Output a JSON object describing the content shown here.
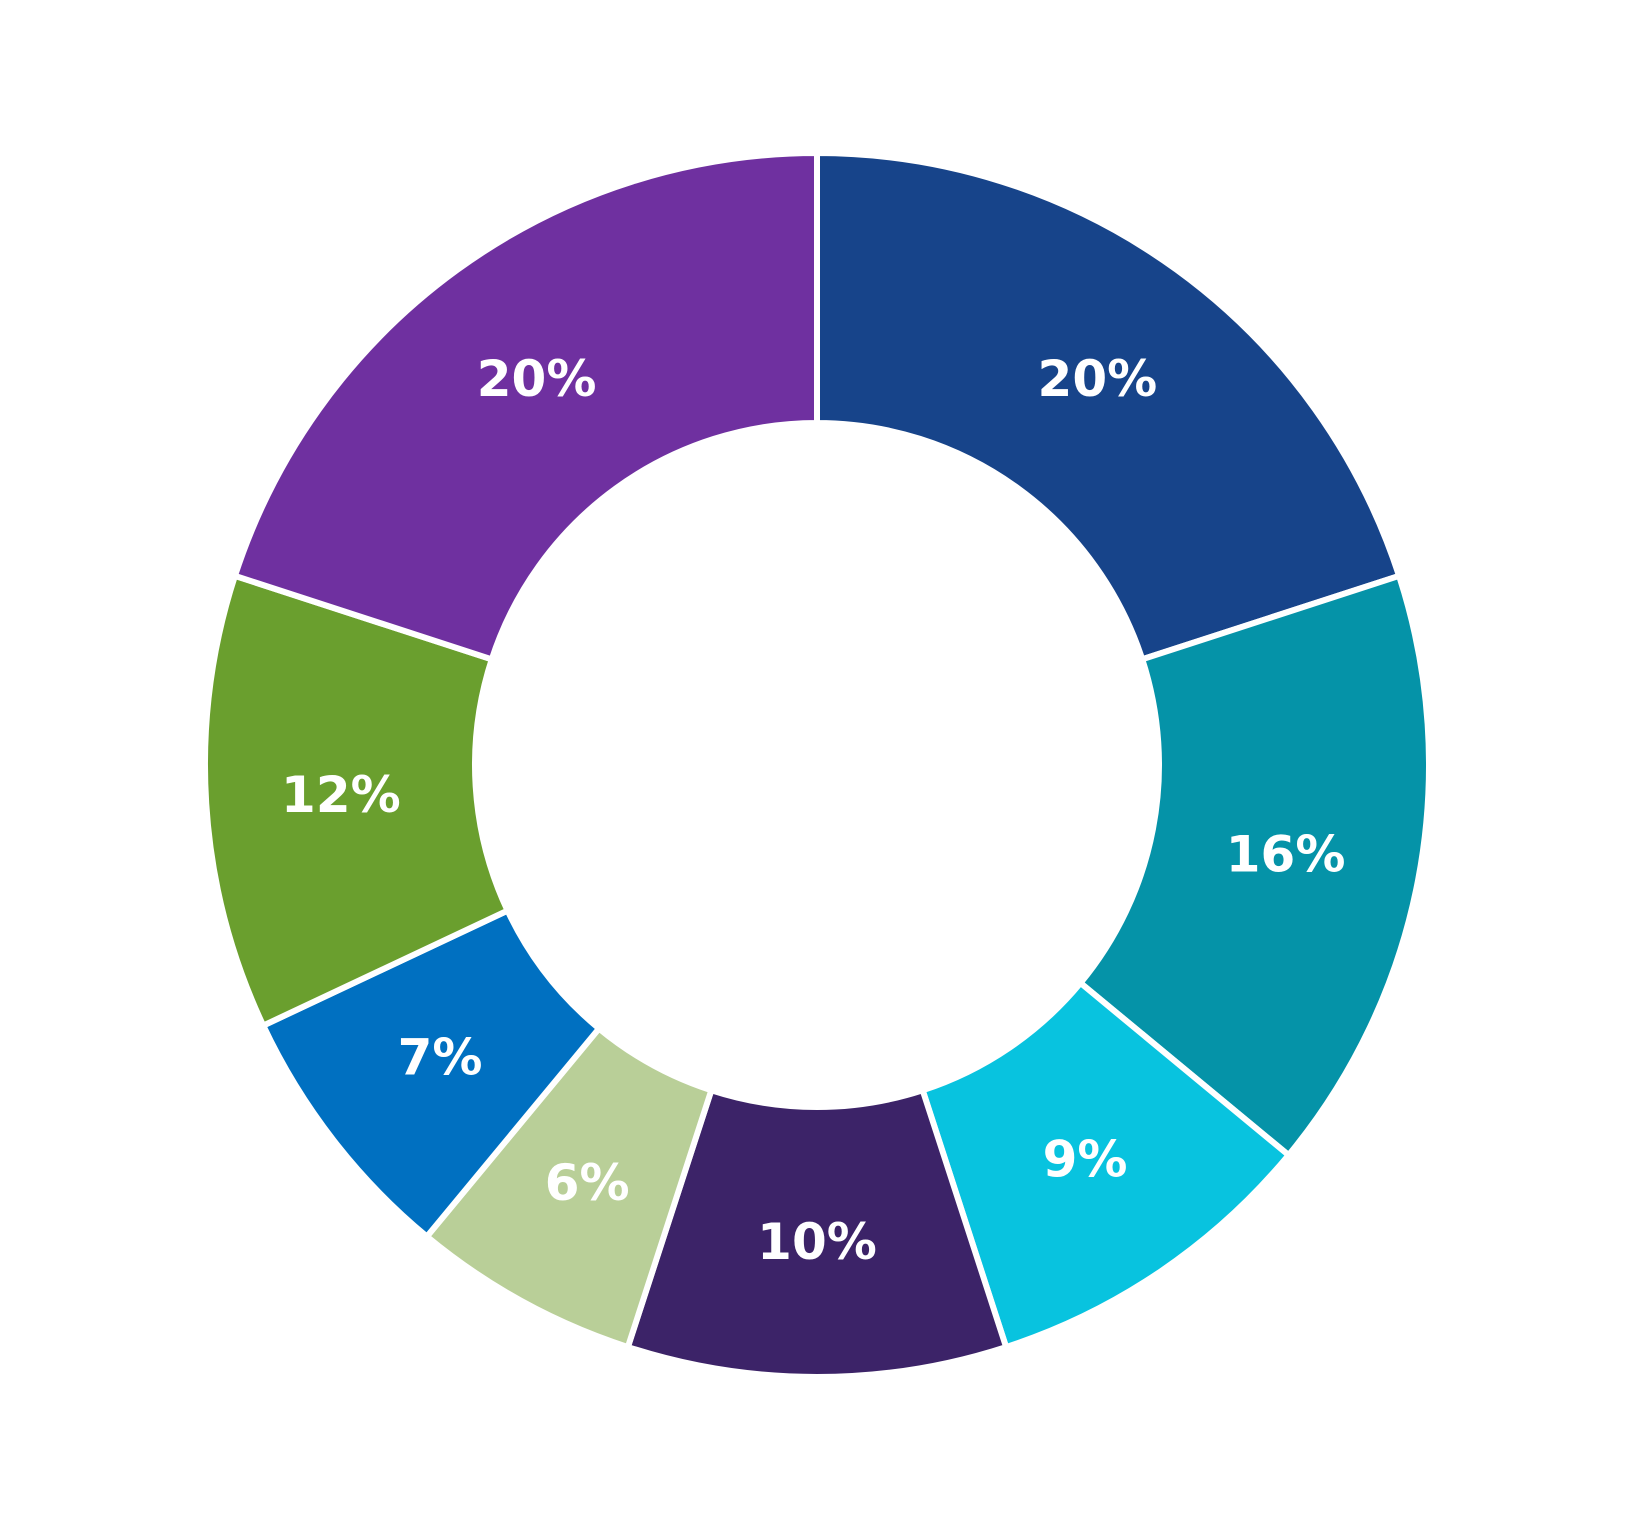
{
  "chart_data": {
    "type": "pie",
    "variant": "donut",
    "title": "",
    "slices": [
      {
        "label": "20%",
        "value": 20,
        "color": "#17448a"
      },
      {
        "label": "16%",
        "value": 16,
        "color": "#0593a8"
      },
      {
        "label": "9%",
        "value": 9,
        "color": "#08c3df"
      },
      {
        "label": "10%",
        "value": 10,
        "color": "#3c2368"
      },
      {
        "label": "6%",
        "value": 6,
        "color": "#b9cf98"
      },
      {
        "label": "7%",
        "value": 7,
        "color": "#0070c1"
      },
      {
        "label": "12%",
        "value": 12,
        "color": "#6a9f2e"
      },
      {
        "label": "20%",
        "value": 20,
        "color": "#6f30a0"
      }
    ],
    "start_angle": "12 o'clock",
    "direction": "clockwise",
    "legend": "none"
  }
}
